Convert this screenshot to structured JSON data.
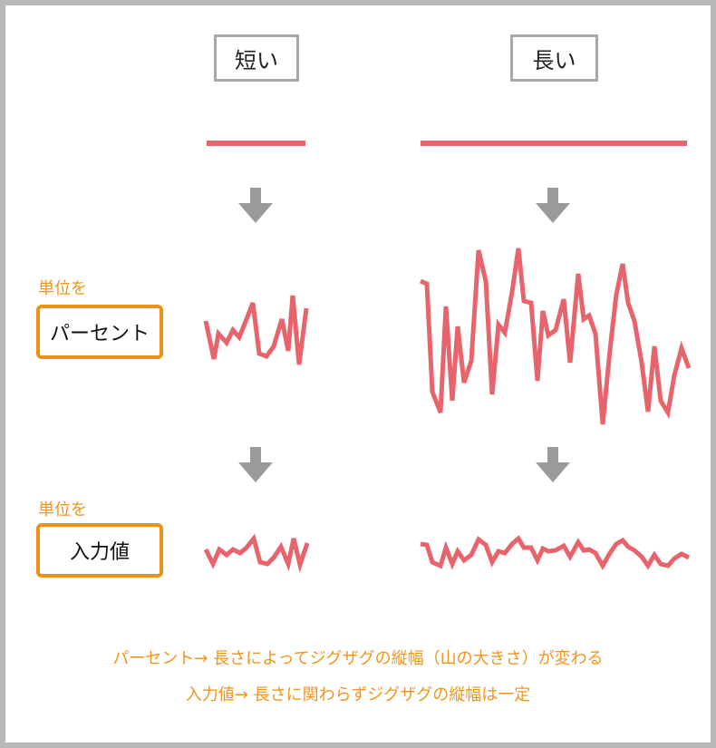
{
  "headers": {
    "short": "短い",
    "long": "長い"
  },
  "rows": [
    {
      "unit_label": "単位を",
      "unit_value": "パーセント"
    },
    {
      "unit_label": "単位を",
      "unit_value": "入力値"
    }
  ],
  "captions": [
    "パーセント→ 長さによってジグザグの縦幅（山の大きさ）が変わる",
    "入力値→ 長さに関わらずジグザグの縦幅は一定"
  ],
  "colors": {
    "line": "#e8646c",
    "arrow": "#9a9a9a",
    "accent": "#ef9110",
    "frame": "#b8b8b8"
  }
}
